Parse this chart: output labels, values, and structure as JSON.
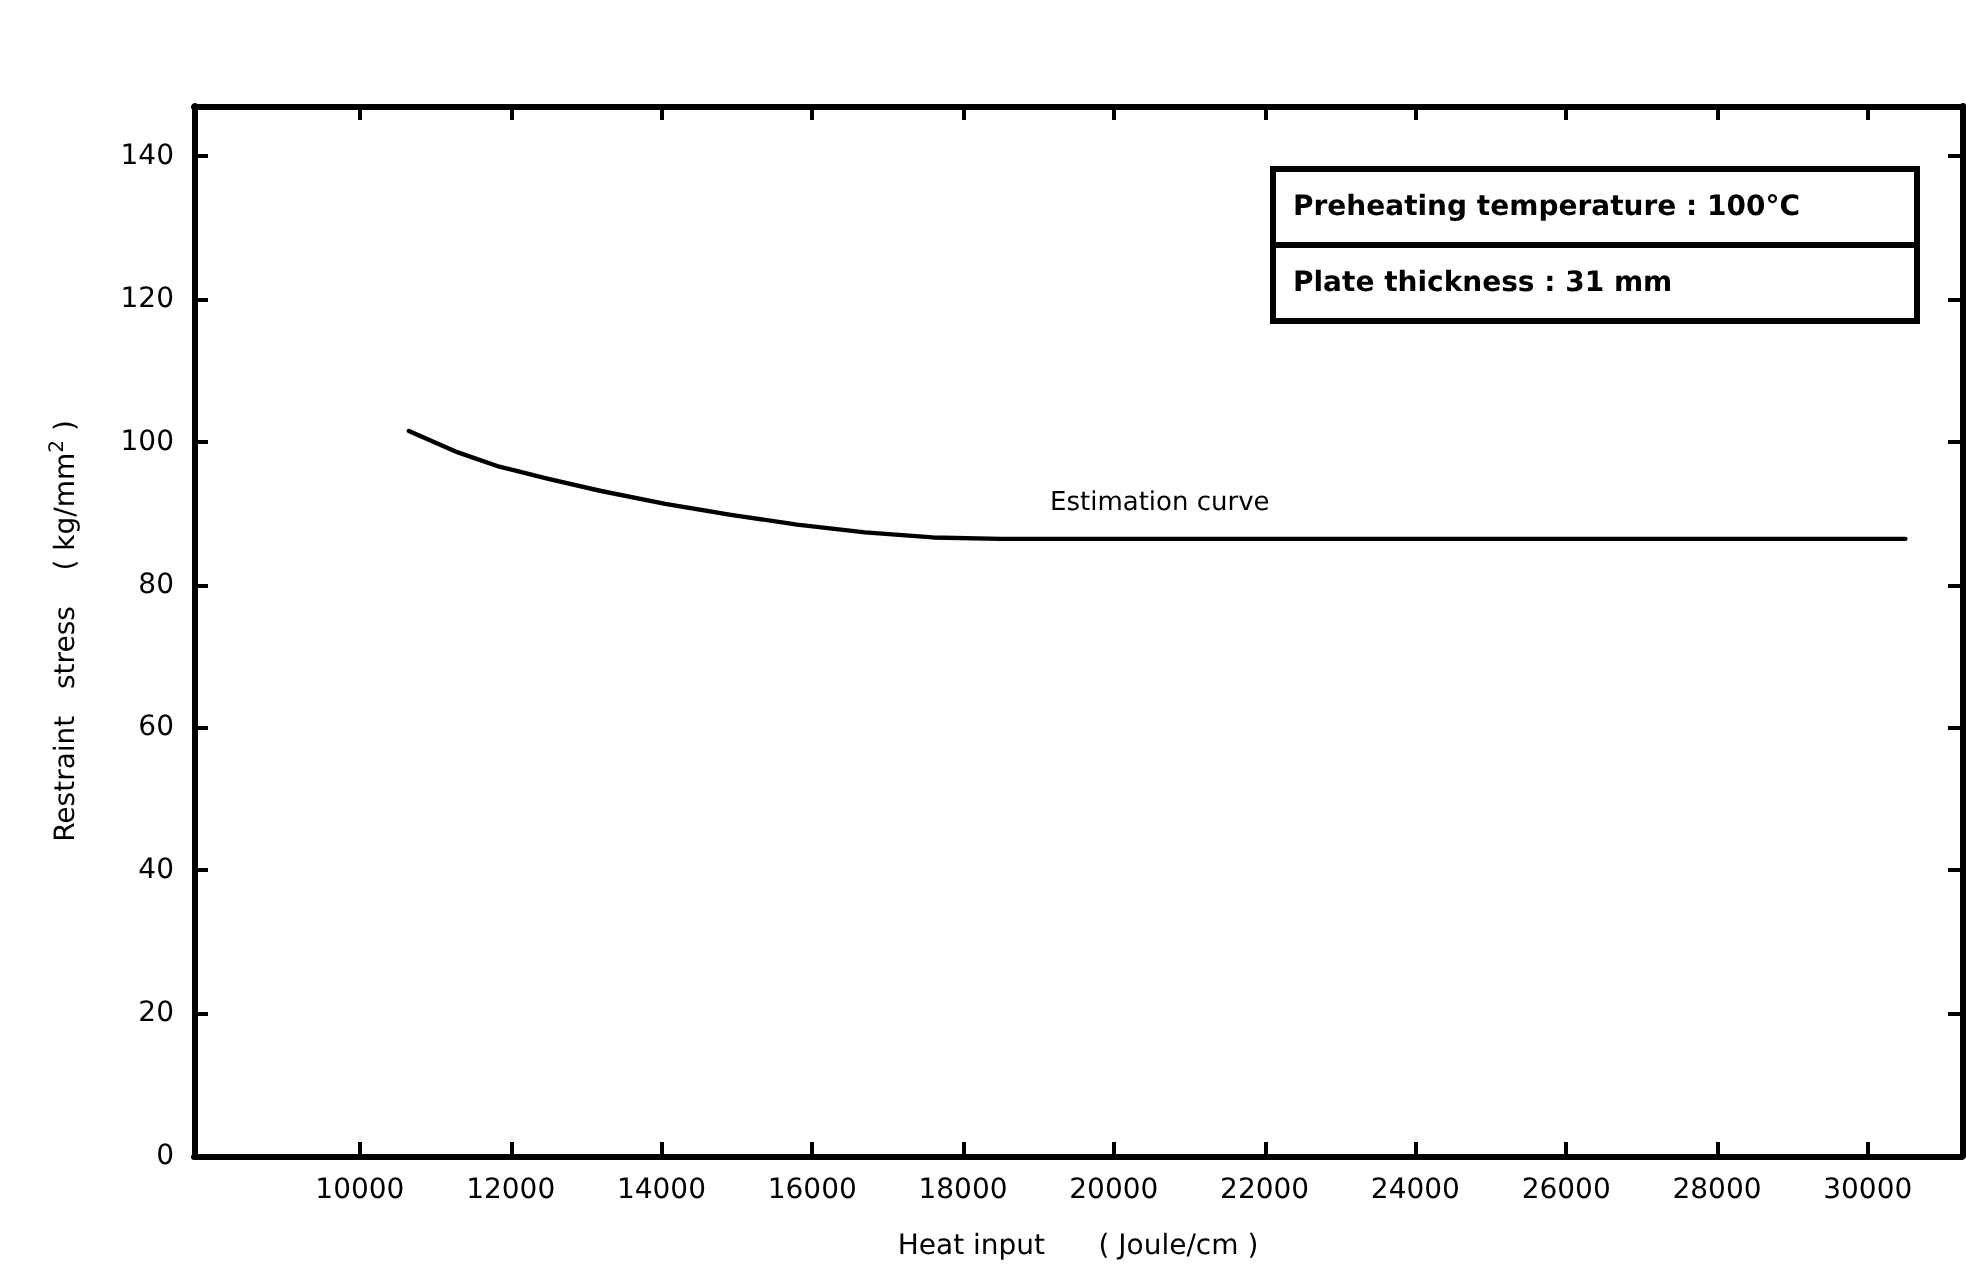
{
  "chart_data": {
    "type": "line",
    "xlabel": "Heat input      ( Joule/cm )",
    "ylabel": "Restraint   stress    ( kg/mm$^{2}$ )",
    "xlim": [
      7800,
      31250
    ],
    "ylim": [
      0,
      147
    ],
    "xticks": [
      10000,
      12000,
      14000,
      16000,
      18000,
      20000,
      22000,
      24000,
      26000,
      28000,
      30000
    ],
    "yticks": [
      0,
      20,
      40,
      60,
      80,
      100,
      120,
      140
    ],
    "series": [
      {
        "color": "#000000",
        "x": [
          10650,
          11300,
          11850,
          12500,
          13200,
          14050,
          14900,
          15800,
          16700,
          17600,
          18500,
          20000,
          24000,
          28000,
          30500
        ],
        "values": [
          101.5,
          98.5,
          96.5,
          94.8,
          93.1,
          91.3,
          89.8,
          88.4,
          87.3,
          86.6,
          86.4,
          86.4,
          86.4,
          86.4,
          86.4
        ]
      }
    ],
    "annotations": [
      "Estimation curve",
      "Preheating temperature : 100°C",
      "Plate thickness : 31 mm"
    ],
    "grid": false,
    "marker": "none",
    "line_style": "solid"
  }
}
